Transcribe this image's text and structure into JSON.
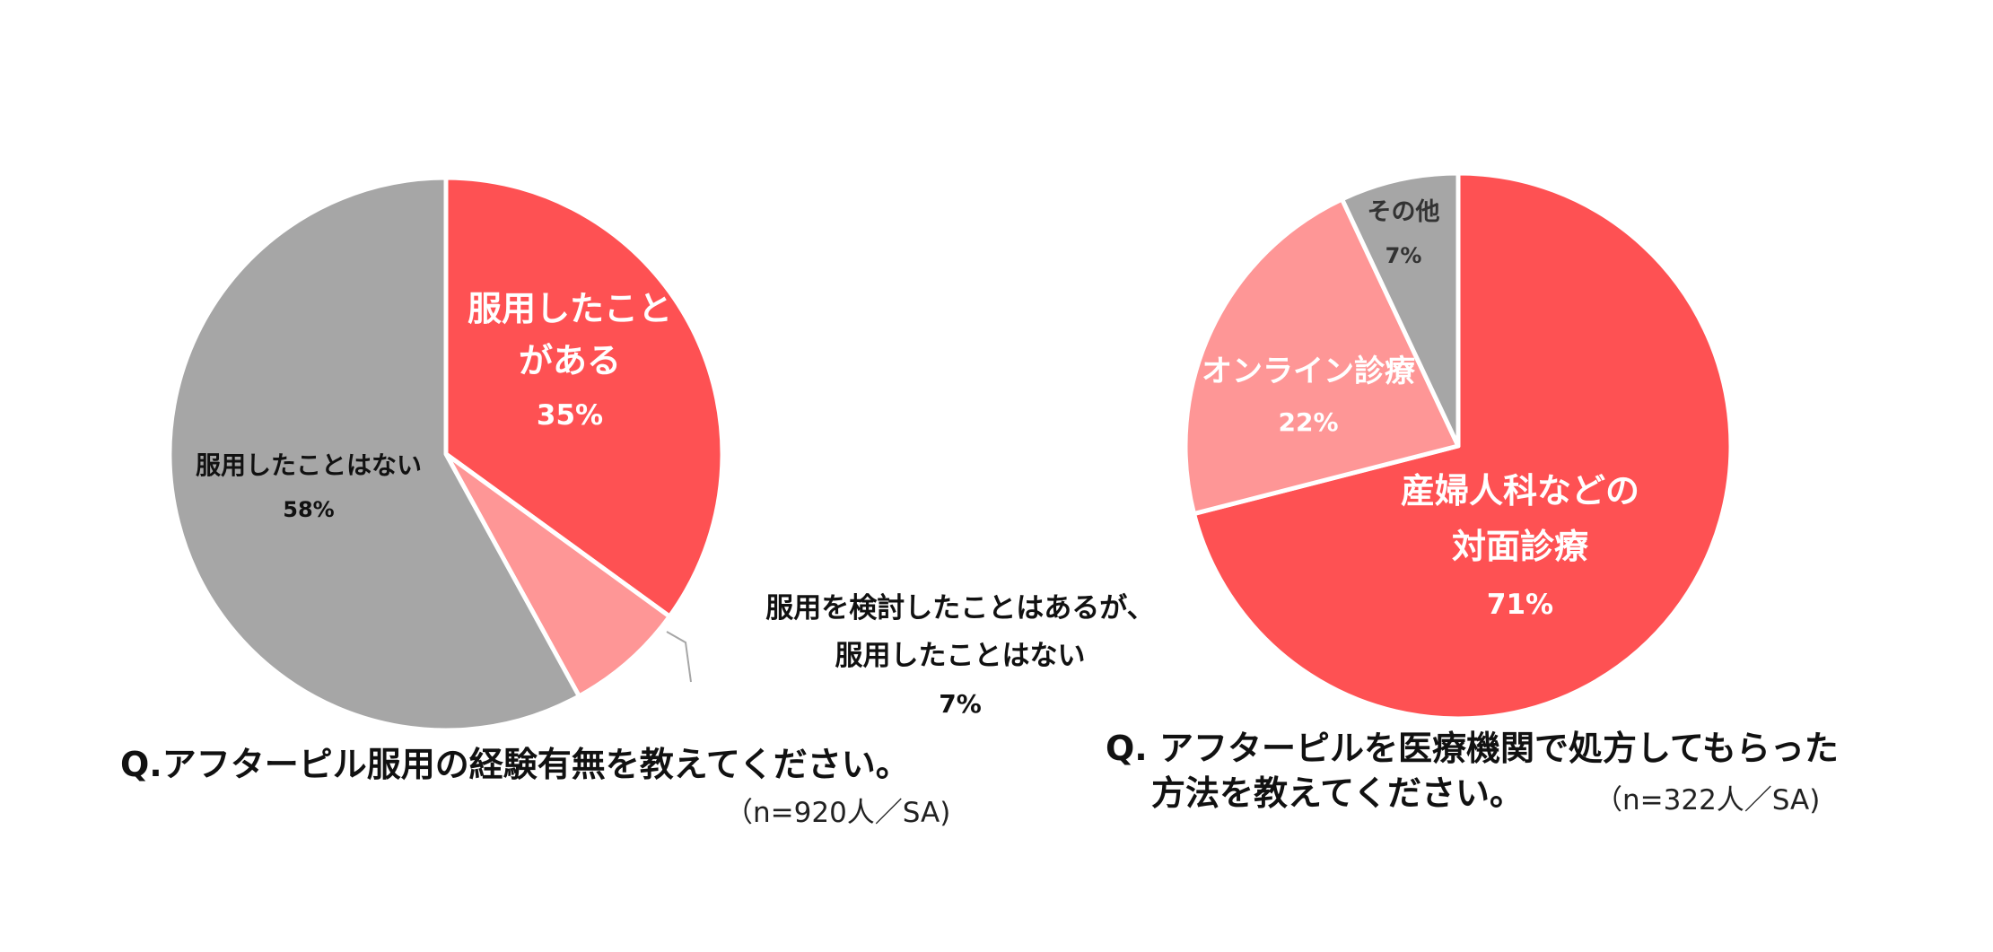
{
  "chart_data": [
    {
      "type": "pie",
      "title": "Q.アフターピル服用の経験有無を教えてください。",
      "note": "（n=920人／SA)",
      "slices": [
        {
          "label": [
            "服用したこと",
            "がある"
          ],
          "value": 35,
          "value_label": "35%",
          "color": "#fe5153"
        },
        {
          "label": [
            "服用を検討したことはあるが、",
            "服用したことはない"
          ],
          "value": 7,
          "value_label": "7%",
          "color": "#fe9696"
        },
        {
          "label": [
            "服用したことはない"
          ],
          "value": 58,
          "value_label": "58%",
          "color": "#a6a6a6"
        }
      ]
    },
    {
      "type": "pie",
      "title": [
        "Q. アフターピルを医療機関で処方してもらった",
        "方法を教えてください。"
      ],
      "note": "（n=322人／SA)",
      "slices": [
        {
          "label": [
            "産婦人科などの",
            "対面診療"
          ],
          "value": 71,
          "value_label": "71%",
          "color": "#fe5153"
        },
        {
          "label": [
            "オンライン診療"
          ],
          "value": 22,
          "value_label": "22%",
          "color": "#fe9696"
        },
        {
          "label": [
            "その他"
          ],
          "value": 7,
          "value_label": "7%",
          "color": "#a6a6a6"
        }
      ]
    }
  ]
}
